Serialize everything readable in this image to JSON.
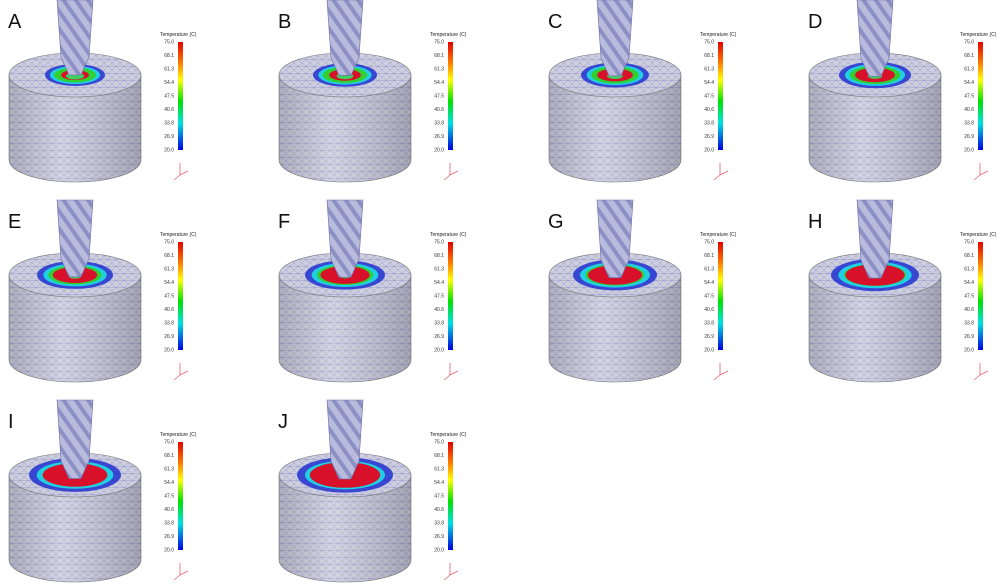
{
  "panels": [
    {
      "label": "A",
      "legend": {
        "title": "Temperature (C)",
        "ticks": [
          "75.0",
          "68.1",
          "61.3",
          "54.4",
          "47.5",
          "40.6",
          "33.8",
          "26.9",
          "20.0"
        ]
      }
    },
    {
      "label": "B",
      "legend": {
        "title": "Temperature (C)",
        "ticks": [
          "75.0",
          "68.1",
          "61.3",
          "54.4",
          "47.5",
          "40.6",
          "33.8",
          "26.9",
          "20.0"
        ]
      }
    },
    {
      "label": "C",
      "legend": {
        "title": "Temperature (C)",
        "ticks": [
          "75.0",
          "68.1",
          "61.3",
          "54.4",
          "47.5",
          "40.6",
          "33.8",
          "26.9",
          "20.0"
        ]
      }
    },
    {
      "label": "D",
      "legend": {
        "title": "Temperature (C)",
        "ticks": [
          "75.0",
          "68.1",
          "61.3",
          "54.4",
          "47.5",
          "40.6",
          "33.8",
          "26.9",
          "20.0"
        ]
      }
    },
    {
      "label": "E",
      "legend": {
        "title": "Temperature (C)",
        "ticks": [
          "75.0",
          "68.1",
          "61.3",
          "54.4",
          "47.5",
          "40.6",
          "33.8",
          "26.9",
          "20.0"
        ]
      }
    },
    {
      "label": "F",
      "legend": {
        "title": "Temperature (C)",
        "ticks": [
          "75.0",
          "68.1",
          "61.3",
          "54.4",
          "47.5",
          "40.6",
          "33.8",
          "26.9",
          "20.0"
        ]
      }
    },
    {
      "label": "G",
      "legend": {
        "title": "Temperature (C)",
        "ticks": [
          "75.0",
          "68.1",
          "61.3",
          "54.4",
          "47.5",
          "40.6",
          "33.8",
          "26.9",
          "20.0"
        ]
      }
    },
    {
      "label": "H",
      "legend": {
        "title": "Temperature (C)",
        "ticks": [
          "75.0",
          "68.1",
          "61.3",
          "54.4",
          "47.5",
          "40.6",
          "33.8",
          "26.9",
          "20.0"
        ]
      }
    },
    {
      "label": "I",
      "legend": {
        "title": "Temperature (C)",
        "ticks": [
          "75.0",
          "68.1",
          "61.3",
          "54.4",
          "47.5",
          "40.6",
          "33.8",
          "26.9",
          "20.0"
        ]
      }
    },
    {
      "label": "J",
      "legend": {
        "title": "Temperature (C)",
        "ticks": [
          "75.0",
          "68.1",
          "61.3",
          "54.4",
          "47.5",
          "40.6",
          "33.8",
          "26.9",
          "20.0"
        ]
      }
    }
  ]
}
